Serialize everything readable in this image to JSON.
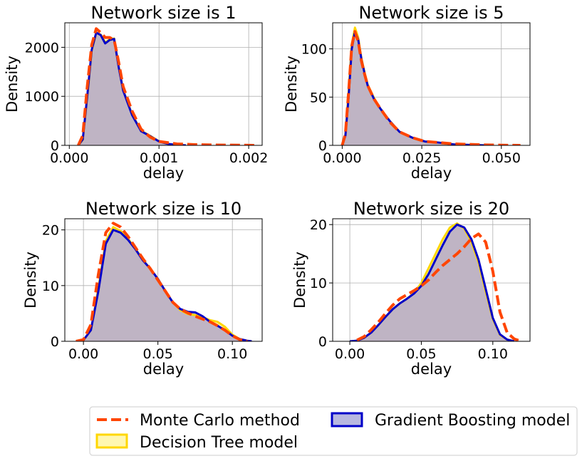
{
  "colors": {
    "monte_carlo": "#FF4500",
    "decision_tree_edge": "#FFD700",
    "decision_tree_fill": "#FFF7B0",
    "gradient_boosting_edge": "#0000C8",
    "gradient_boosting_fill": "#B8B8E0",
    "overlap_fill": "#BFB4C4"
  },
  "legend": {
    "monte_carlo": "Monte Carlo method",
    "decision_tree": "Decision Tree model",
    "gradient_boosting": "Gradient Boosting model"
  },
  "chart_data": [
    {
      "type": "area",
      "title": "Network size is 1",
      "xlabel": "delay",
      "ylabel": "Density",
      "xlim": [
        -5e-05,
        0.00215
      ],
      "ylim": [
        0,
        2500
      ],
      "xticks": [
        0.0,
        0.001,
        0.002
      ],
      "xtick_labels": [
        "0.000",
        "0.001",
        "0.002"
      ],
      "yticks": [
        0,
        1000,
        2000
      ],
      "ytick_labels": [
        "0",
        "1000",
        "2000"
      ],
      "grid": true,
      "series": [
        {
          "key": "gradient_boosting",
          "x": [
            0.0001,
            0.00015,
            0.0002,
            0.00025,
            0.0003,
            0.00035,
            0.0004,
            0.00045,
            0.0005,
            0.00055,
            0.0006,
            0.0007,
            0.0008,
            0.0009,
            0.001,
            0.0011,
            0.0012,
            0.0013
          ],
          "y": [
            0,
            120,
            1000,
            1950,
            2300,
            2250,
            2080,
            2150,
            2170,
            1600,
            1120,
            620,
            290,
            190,
            80,
            30,
            10,
            0
          ]
        },
        {
          "key": "decision_tree",
          "x": [
            0.0001,
            0.00015,
            0.0002,
            0.00025,
            0.0003,
            0.00035,
            0.0004,
            0.00045,
            0.0005,
            0.00055,
            0.0006,
            0.0007,
            0.0008,
            0.0009,
            0.001,
            0.0011,
            0.0012,
            0.0013
          ],
          "y": [
            0,
            110,
            980,
            1930,
            2290,
            2260,
            2100,
            2160,
            2180,
            1620,
            1130,
            630,
            300,
            195,
            85,
            30,
            10,
            0
          ]
        },
        {
          "key": "monte_carlo",
          "x": [
            0.0001,
            0.00015,
            0.0002,
            0.00025,
            0.0003,
            0.00035,
            0.0004,
            0.00045,
            0.0005,
            0.00055,
            0.0006,
            0.0007,
            0.0008,
            0.0009,
            0.001,
            0.0012,
            0.0014,
            0.0016,
            0.0018,
            0.002,
            0.0021
          ],
          "y": [
            0,
            200,
            1200,
            2050,
            2380,
            2300,
            2200,
            2200,
            2150,
            1700,
            1200,
            700,
            330,
            170,
            80,
            30,
            15,
            8,
            5,
            2,
            0
          ]
        }
      ]
    },
    {
      "type": "area",
      "title": "Network size is 5",
      "xlabel": "delay",
      "ylabel": "Density",
      "xlim": [
        -0.003,
        0.059
      ],
      "ylim": [
        0,
        127
      ],
      "xticks": [
        0.0,
        0.025,
        0.05
      ],
      "xtick_labels": [
        "0.000",
        "0.025",
        "0.050"
      ],
      "yticks": [
        0,
        50,
        100
      ],
      "ytick_labels": [
        "0",
        "50",
        "100"
      ],
      "grid": true,
      "series": [
        {
          "key": "gradient_boosting",
          "x": [
            0.0,
            0.001,
            0.002,
            0.003,
            0.004,
            0.005,
            0.006,
            0.007,
            0.008,
            0.01,
            0.012,
            0.015,
            0.018,
            0.022,
            0.026,
            0.03,
            0.035,
            0.04,
            0.045
          ],
          "y": [
            0,
            10,
            50,
            100,
            118,
            110,
            90,
            75,
            62,
            48,
            38,
            25,
            14,
            8,
            4,
            3,
            1,
            0.5,
            0
          ]
        },
        {
          "key": "decision_tree",
          "x": [
            0.0,
            0.001,
            0.002,
            0.003,
            0.004,
            0.005,
            0.006,
            0.007,
            0.008,
            0.01,
            0.012,
            0.015,
            0.018,
            0.022,
            0.026,
            0.03,
            0.035,
            0.04,
            0.045
          ],
          "y": [
            0,
            11,
            55,
            105,
            122,
            112,
            91,
            76,
            63,
            49,
            38,
            25,
            14,
            8,
            4,
            3,
            1,
            0.5,
            0
          ]
        },
        {
          "key": "monte_carlo",
          "x": [
            0.0,
            0.001,
            0.002,
            0.003,
            0.004,
            0.005,
            0.006,
            0.007,
            0.008,
            0.01,
            0.012,
            0.015,
            0.018,
            0.022,
            0.026,
            0.03,
            0.035,
            0.04,
            0.045,
            0.05,
            0.056
          ],
          "y": [
            0,
            12,
            55,
            103,
            118,
            108,
            88,
            74,
            62,
            48,
            38,
            24,
            14,
            8,
            4,
            3,
            1.5,
            1,
            0.5,
            0.2,
            0
          ]
        }
      ]
    },
    {
      "type": "area",
      "title": "Network size is 10",
      "xlabel": "delay",
      "ylabel": "Density",
      "xlim": [
        -0.0125,
        0.12
      ],
      "ylim": [
        0,
        22
      ],
      "xticks": [
        0.0,
        0.05,
        0.1
      ],
      "xtick_labels": [
        "0.00",
        "0.05",
        "0.10"
      ],
      "yticks": [
        0,
        10,
        20
      ],
      "ytick_labels": [
        "0",
        "10",
        "20"
      ],
      "grid": true,
      "series": [
        {
          "key": "gradient_boosting",
          "x": [
            -0.005,
            0.0,
            0.005,
            0.01,
            0.015,
            0.02,
            0.025,
            0.03,
            0.035,
            0.04,
            0.045,
            0.05,
            0.055,
            0.06,
            0.065,
            0.07,
            0.075,
            0.08,
            0.085,
            0.09,
            0.095,
            0.1,
            0.105,
            0.11,
            0.113
          ],
          "y": [
            0,
            0.2,
            2,
            9,
            17.5,
            20,
            19.5,
            18.2,
            16.5,
            14.5,
            13,
            11.2,
            9,
            7,
            5.8,
            5.3,
            5.2,
            4.5,
            3.5,
            2.8,
            2,
            1,
            0.4,
            0.1,
            0
          ]
        },
        {
          "key": "decision_tree",
          "x": [
            -0.005,
            0.0,
            0.005,
            0.01,
            0.015,
            0.02,
            0.025,
            0.03,
            0.035,
            0.04,
            0.045,
            0.05,
            0.055,
            0.06,
            0.065,
            0.07,
            0.075,
            0.08,
            0.085,
            0.09,
            0.095,
            0.1,
            0.105,
            0.11,
            0.113
          ],
          "y": [
            0,
            0.2,
            2,
            9.5,
            18,
            20.5,
            19.8,
            18.4,
            16.6,
            14.6,
            13,
            11.2,
            9,
            7,
            5.6,
            4.9,
            4.7,
            4.3,
            3.8,
            3.5,
            2.6,
            1.2,
            0.4,
            0.1,
            0
          ]
        },
        {
          "key": "monte_carlo",
          "x": [
            -0.005,
            0.0,
            0.005,
            0.01,
            0.015,
            0.02,
            0.025,
            0.03,
            0.035,
            0.04,
            0.045,
            0.05,
            0.055,
            0.06,
            0.065,
            0.07,
            0.075,
            0.08,
            0.085,
            0.09,
            0.095,
            0.1,
            0.105,
            0.11
          ],
          "y": [
            0,
            0.3,
            3,
            12,
            19.5,
            21.2,
            20.5,
            18.8,
            16.8,
            14.8,
            13,
            11,
            9,
            7,
            5.8,
            5.1,
            4.5,
            4,
            3.5,
            2.8,
            2,
            1,
            0.3,
            0
          ]
        }
      ]
    },
    {
      "type": "area",
      "title": "Network size is 20",
      "xlabel": "delay",
      "ylabel": "Density",
      "xlim": [
        -0.012,
        0.126
      ],
      "ylim": [
        0,
        21
      ],
      "xticks": [
        0.0,
        0.05,
        0.1
      ],
      "xtick_labels": [
        "0.00",
        "0.05",
        "0.10"
      ],
      "yticks": [
        0,
        10,
        20
      ],
      "ytick_labels": [
        "0",
        "10",
        "20"
      ],
      "grid": true,
      "series": [
        {
          "key": "gradient_boosting",
          "x": [
            0.0,
            0.005,
            0.01,
            0.015,
            0.02,
            0.025,
            0.03,
            0.035,
            0.04,
            0.045,
            0.05,
            0.055,
            0.06,
            0.065,
            0.07,
            0.075,
            0.08,
            0.085,
            0.09,
            0.095,
            0.1,
            0.105,
            0.11,
            0.115
          ],
          "y": [
            0,
            0.1,
            0.6,
            1.5,
            2.8,
            4.2,
            5.5,
            6.5,
            7.3,
            8.2,
            9.5,
            11.5,
            14,
            16.5,
            18.8,
            20,
            19.5,
            17.5,
            14,
            9,
            4,
            1.2,
            0.3,
            0
          ]
        },
        {
          "key": "decision_tree",
          "x": [
            0.0,
            0.005,
            0.01,
            0.015,
            0.02,
            0.025,
            0.03,
            0.035,
            0.04,
            0.045,
            0.05,
            0.055,
            0.06,
            0.065,
            0.07,
            0.075,
            0.08,
            0.085,
            0.09,
            0.095,
            0.1,
            0.105,
            0.11,
            0.115
          ],
          "y": [
            0,
            0.1,
            0.6,
            1.5,
            2.8,
            4.2,
            5.5,
            6.5,
            7.3,
            8.3,
            10,
            12.5,
            15,
            17.5,
            19.5,
            20.2,
            19.3,
            17,
            13.5,
            8.5,
            3.8,
            1.1,
            0.3,
            0
          ]
        },
        {
          "key": "monte_carlo",
          "x": [
            0.005,
            0.01,
            0.015,
            0.02,
            0.025,
            0.03,
            0.035,
            0.04,
            0.045,
            0.05,
            0.055,
            0.06,
            0.065,
            0.07,
            0.075,
            0.08,
            0.085,
            0.09,
            0.095,
            0.1,
            0.105,
            0.11,
            0.115,
            0.12
          ],
          "y": [
            0.2,
            0.8,
            2,
            3.3,
            4.8,
            6.2,
            7.3,
            8,
            8.7,
            9.5,
            10.5,
            11.8,
            13,
            14,
            15,
            16.2,
            17.6,
            18.4,
            17,
            12,
            5,
            1.5,
            0.4,
            0
          ]
        }
      ]
    }
  ]
}
